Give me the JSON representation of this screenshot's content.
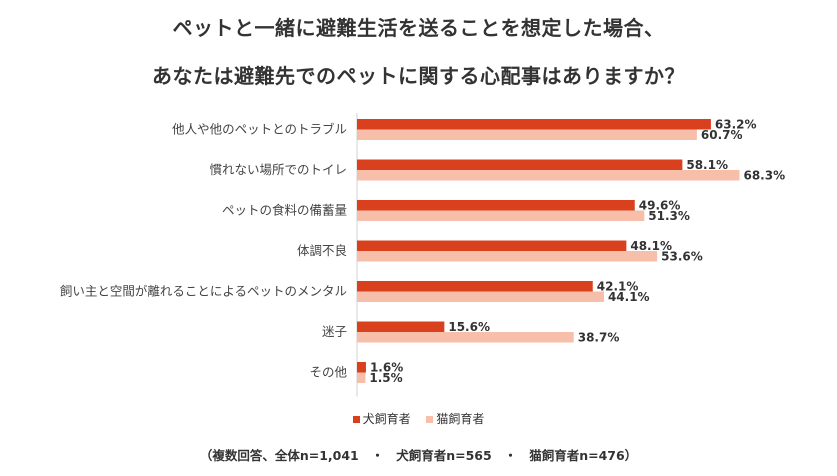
{
  "title_line1": "ペットと一緒に避難生活を送ることを想定した場合、",
  "title_line2": "あなたは避難先でのペットに関する心配事はありますか？",
  "footnote": "（複数回答、全体n=1,041　・　犬飼育者n=565　・　猫飼育者n=476）",
  "colors": {
    "dog": "#d9411e",
    "cat": "#f7bfaa"
  },
  "chart_data": {
    "type": "bar",
    "orientation": "horizontal",
    "title": "ペットと一緒に避難生活を送ることを想定した場合、あなたは避難先でのペットに関する心配事はありますか？",
    "categories": [
      "他人や他のペットとのトラブル",
      "慣れない場所でのトイレ",
      "ペットの食料の備蓄量",
      "体調不良",
      "飼い主と空間が離れることによるペットのメンタル",
      "迷子",
      "その他"
    ],
    "series": [
      {
        "name": "犬飼育者",
        "values": [
          63.2,
          58.1,
          49.6,
          48.1,
          42.1,
          15.6,
          1.6
        ],
        "labels": [
          "63.2%",
          "58.1%",
          "49.6%",
          "48.1%",
          "42.1%",
          "15.6%",
          "1.6%"
        ]
      },
      {
        "name": "猫飼育者",
        "values": [
          60.7,
          68.3,
          51.3,
          53.6,
          44.1,
          38.7,
          1.5
        ],
        "labels": [
          "60.7%",
          "68.3%",
          "51.3%",
          "53.6%",
          "44.1%",
          "38.7%",
          "1.5%"
        ]
      }
    ],
    "xlim": [
      0,
      100
    ],
    "legend_position": "bottom"
  }
}
